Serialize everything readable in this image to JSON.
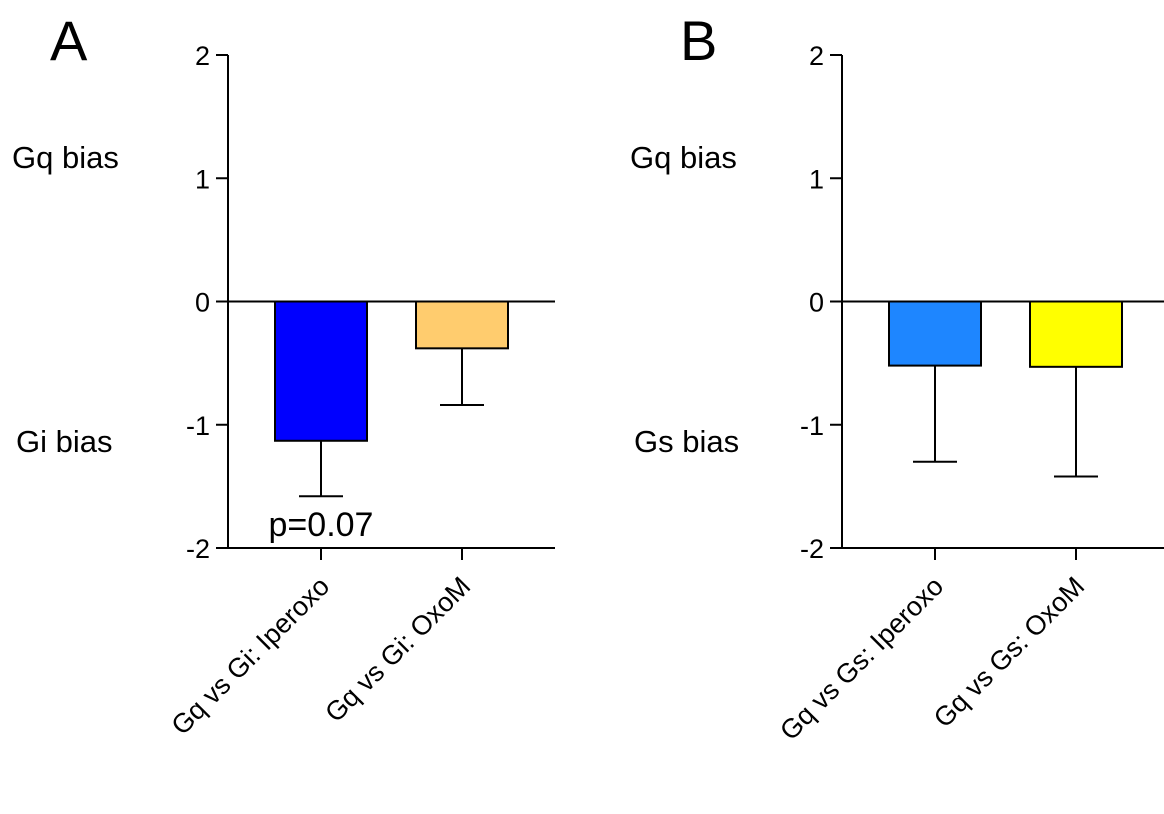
{
  "chart_data": [
    {
      "type": "bar",
      "panel": "A",
      "categories": [
        "Gq vs Gi: Iperoxo",
        "Gq vs Gi: OxoM"
      ],
      "values": [
        -1.13,
        -0.38
      ],
      "error_bars": [
        0.45,
        0.46
      ],
      "colors": [
        "#0000FF",
        "#FFCC6E"
      ],
      "ylim": [
        -2,
        2
      ],
      "yticks": [
        2,
        1,
        0,
        -1,
        -2
      ],
      "bias_labels": {
        "upper": "Gq bias",
        "lower": "Gi bias"
      },
      "annotations": [
        {
          "text": "p=0.07",
          "category": "Gq vs Gi: Iperoxo"
        }
      ],
      "grid": false,
      "legend": "none"
    },
    {
      "type": "bar",
      "panel": "B",
      "categories": [
        "Gq vs Gs: Iperoxo",
        "Gq vs Gs: OxoM"
      ],
      "values": [
        -0.52,
        -0.53
      ],
      "error_bars": [
        0.78,
        0.89
      ],
      "colors": [
        "#1E86FF",
        "#FFFF00"
      ],
      "ylim": [
        -2,
        2
      ],
      "yticks": [
        2,
        1,
        0,
        -1,
        -2
      ],
      "bias_labels": {
        "upper": "Gq bias",
        "lower": "Gs bias"
      },
      "annotations": [],
      "grid": false,
      "legend": "none"
    }
  ]
}
